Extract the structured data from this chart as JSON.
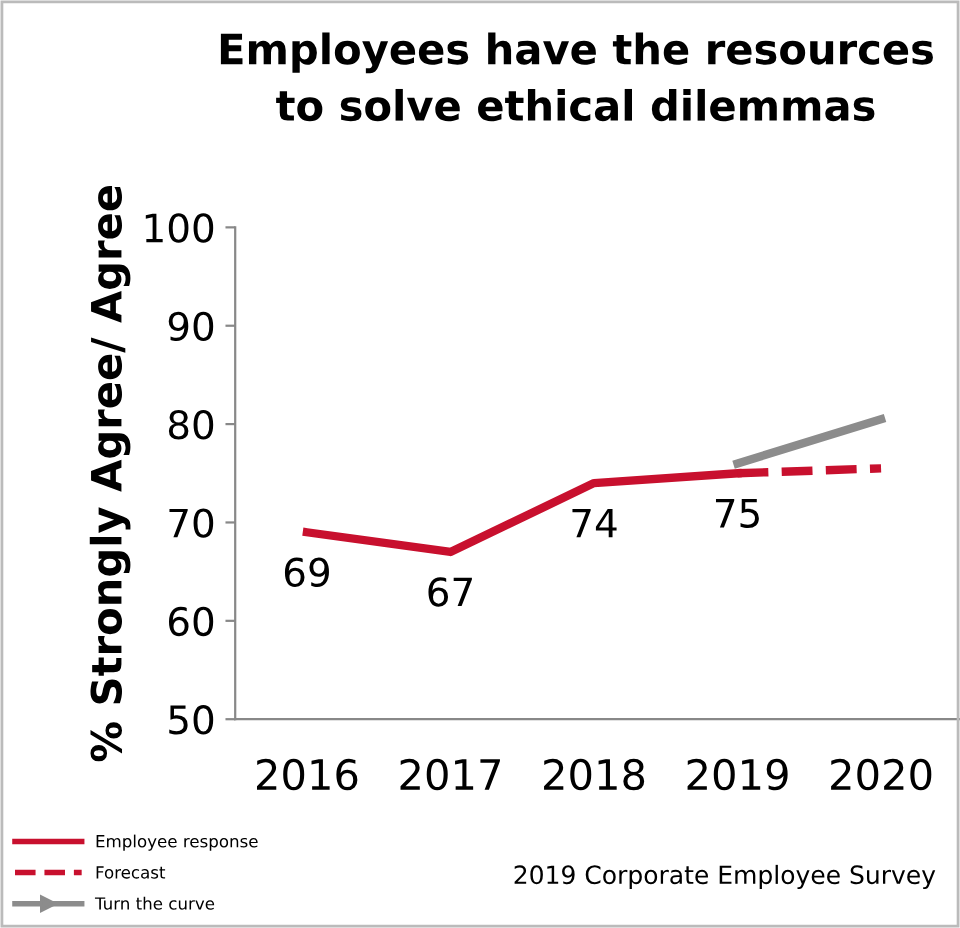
{
  "chart_data": {
    "type": "line",
    "title": "Employees have the resources\nto solve ethical dilemmas",
    "ylabel": "% Strongly Agree/ Agree",
    "categories": [
      "2016",
      "2017",
      "2018",
      "2019",
      "2020"
    ],
    "series": [
      {
        "name": "Employee response",
        "color": "#c8102e",
        "values": [
          69,
          67,
          74,
          75,
          null
        ],
        "value_labels": [
          "69",
          "67",
          "74",
          "75",
          null
        ],
        "line_style": "solid"
      },
      {
        "name": "Forecast",
        "color": "#c8102e",
        "values": [
          null,
          null,
          null,
          75,
          75.5
        ],
        "line_style": "dashed"
      },
      {
        "name": "Turn the curve",
        "color": "#8c8c8c",
        "values": [
          null,
          null,
          null,
          76,
          80.5
        ],
        "line_style": "solid"
      }
    ],
    "ylim": [
      50,
      100
    ],
    "yticks": [
      50,
      60,
      70,
      80,
      90,
      100
    ],
    "grid": false,
    "legend": "bottom left",
    "marker": "none",
    "annotations": [
      "2019 Corporate Employee Survey"
    ]
  }
}
